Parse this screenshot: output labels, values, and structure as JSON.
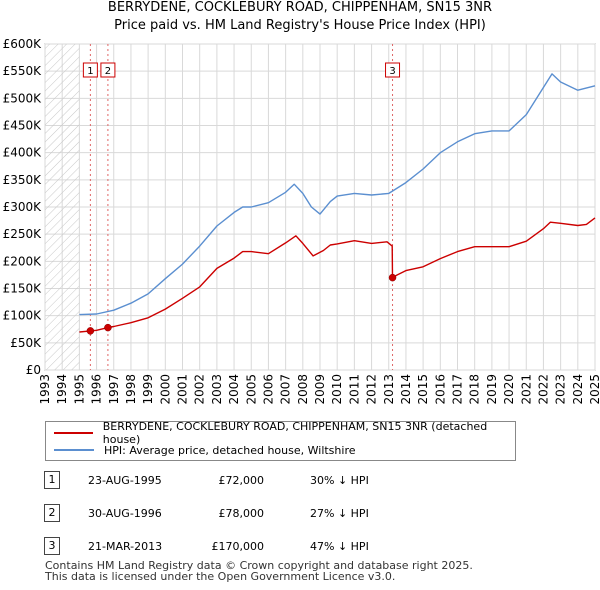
{
  "header": {
    "title": "BERRYDENE, COCKLEBURY ROAD, CHIPPENHAM, SN15 3NR",
    "subtitle": "Price paid vs. HM Land Registry's House Price Index (HPI)"
  },
  "chart_data": {
    "type": "line",
    "title": "BERRYDENE, COCKLEBURY ROAD, CHIPPENHAM, SN15 3NR",
    "xlabel": "",
    "ylabel": "",
    "xlim": [
      1993,
      2025
    ],
    "ylim": [
      0,
      600000
    ],
    "x_ticks": [
      "1993",
      "1994",
      "1995",
      "1996",
      "1997",
      "1998",
      "1999",
      "2000",
      "2001",
      "2002",
      "2003",
      "2004",
      "2005",
      "2006",
      "2007",
      "2008",
      "2009",
      "2010",
      "2011",
      "2012",
      "2013",
      "2014",
      "2015",
      "2016",
      "2017",
      "2018",
      "2019",
      "2020",
      "2021",
      "2022",
      "2023",
      "2024",
      "2025"
    ],
    "y_ticks": [
      {
        "value": 0,
        "label": "£0"
      },
      {
        "value": 50000,
        "label": "£50K"
      },
      {
        "value": 100000,
        "label": "£100K"
      },
      {
        "value": 150000,
        "label": "£150K"
      },
      {
        "value": 200000,
        "label": "£200K"
      },
      {
        "value": 250000,
        "label": "£250K"
      },
      {
        "value": 300000,
        "label": "£300K"
      },
      {
        "value": 350000,
        "label": "£350K"
      },
      {
        "value": 400000,
        "label": "£400K"
      },
      {
        "value": 450000,
        "label": "£450K"
      },
      {
        "value": 500000,
        "label": "£500K"
      },
      {
        "value": 550000,
        "label": "£550K"
      },
      {
        "value": 600000,
        "label": "£600K"
      }
    ],
    "hatch_until": 1995.0,
    "series": [
      {
        "name": "BERRYDENE, COCKLEBURY ROAD, CHIPPENHAM, SN15 3NR (detached house)",
        "color": "#cc0000",
        "x": [
          1995.0,
          1995.64,
          1996.0,
          1996.66,
          1997.0,
          1998.0,
          1999.0,
          2000.0,
          2001.0,
          2002.0,
          2003.0,
          2004.0,
          2004.5,
          2005.0,
          2006.0,
          2007.0,
          2007.6,
          2008.0,
          2008.6,
          2009.2,
          2009.6,
          2010.0,
          2011.0,
          2012.0,
          2012.9,
          2013.2,
          2013.22,
          2013.5,
          2014.0,
          2015.0,
          2016.0,
          2017.0,
          2018.0,
          2019.0,
          2020.0,
          2021.0,
          2022.0,
          2022.4,
          2023.0,
          2024.0,
          2024.5,
          2025.0
        ],
        "values": [
          70000,
          72000,
          73000,
          78000,
          80000,
          87000,
          96000,
          112000,
          132000,
          153000,
          187000,
          206000,
          218000,
          218000,
          214000,
          234000,
          247000,
          233000,
          210000,
          220000,
          230000,
          232000,
          238000,
          233000,
          236000,
          228000,
          170000,
          175000,
          183000,
          190000,
          205000,
          218000,
          227000,
          227000,
          227000,
          237000,
          260000,
          272000,
          270000,
          266000,
          268000,
          280000
        ]
      },
      {
        "name": "HPI: Average price, detached house, Wiltshire",
        "color": "#5b8fd0",
        "x": [
          1995.0,
          1996.0,
          1997.0,
          1998.0,
          1999.0,
          2000.0,
          2001.0,
          2002.0,
          2003.0,
          2004.0,
          2004.5,
          2005.0,
          2006.0,
          2007.0,
          2007.5,
          2008.0,
          2008.5,
          2009.0,
          2009.6,
          2010.0,
          2011.0,
          2012.0,
          2013.0,
          2014.0,
          2015.0,
          2016.0,
          2017.0,
          2018.0,
          2019.0,
          2020.0,
          2021.0,
          2022.0,
          2022.5,
          2023.0,
          2024.0,
          2025.0
        ],
        "values": [
          102000,
          103000,
          110000,
          123000,
          140000,
          168000,
          195000,
          228000,
          265000,
          290000,
          300000,
          300000,
          308000,
          327000,
          342000,
          325000,
          300000,
          287000,
          310000,
          320000,
          325000,
          322000,
          325000,
          345000,
          370000,
          400000,
          420000,
          435000,
          440000,
          440000,
          470000,
          520000,
          545000,
          530000,
          515000,
          523000
        ]
      }
    ],
    "sale_markers": [
      {
        "label": "1",
        "x": 1995.64,
        "value": 72000
      },
      {
        "label": "2",
        "x": 1996.66,
        "value": 78000
      },
      {
        "label": "3",
        "x": 2013.22,
        "value": 170000
      }
    ]
  },
  "legend": {
    "items": [
      {
        "label": "BERRYDENE, COCKLEBURY ROAD, CHIPPENHAM, SN15 3NR (detached house)",
        "color": "#cc0000"
      },
      {
        "label": "HPI: Average price, detached house, Wiltshire",
        "color": "#5b8fd0"
      }
    ]
  },
  "sales": [
    {
      "num": "1",
      "date": "23-AUG-1995",
      "price": "£72,000",
      "hpi": "30% ↓ HPI"
    },
    {
      "num": "2",
      "date": "30-AUG-1996",
      "price": "£78,000",
      "hpi": "27% ↓ HPI"
    },
    {
      "num": "3",
      "date": "21-MAR-2013",
      "price": "£170,000",
      "hpi": "47% ↓ HPI"
    }
  ],
  "footer": {
    "line1": "Contains HM Land Registry data © Crown copyright and database right 2025.",
    "line2": "This data is licensed under the Open Government Licence v3.0."
  }
}
